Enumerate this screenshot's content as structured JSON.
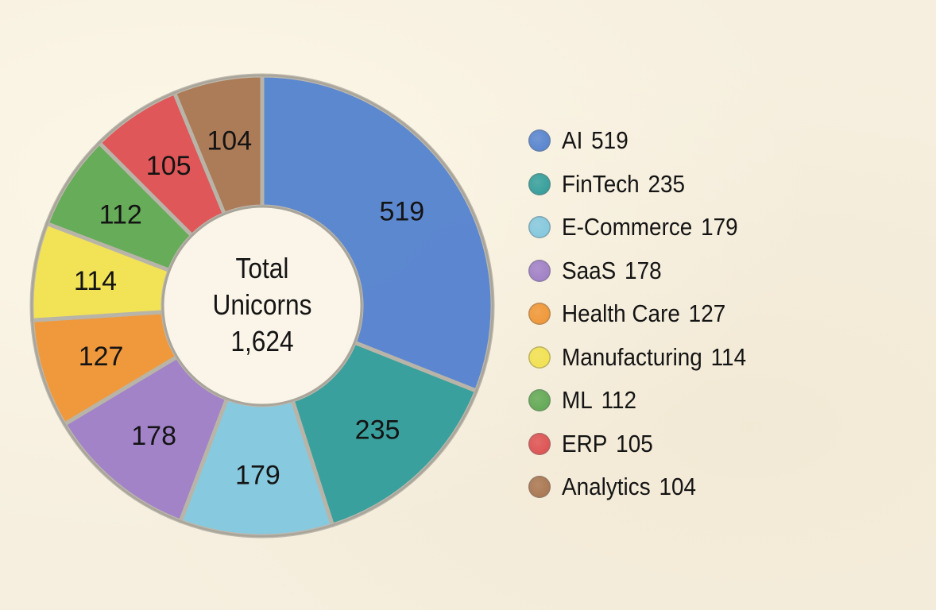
{
  "chart_data": {
    "type": "pie",
    "variant": "donut",
    "title": "",
    "center_label": {
      "line1": "Total",
      "line2": "Unicorns",
      "line3": "1,624"
    },
    "total": 1624,
    "categories": [
      "AI",
      "FinTech",
      "E-Commerce",
      "SaaS",
      "Health Care",
      "Manufacturing",
      "ML",
      "ERP",
      "Analytics"
    ],
    "values": [
      519,
      235,
      179,
      178,
      127,
      114,
      112,
      105,
      104
    ],
    "colors": [
      "#4f7fcf",
      "#2a9a98",
      "#7ec6df",
      "#9b7ac6",
      "#f0922e",
      "#f2e14a",
      "#5aa64e",
      "#dd4a4c",
      "#a6714b"
    ],
    "slice_labels": [
      "519",
      "235",
      "179",
      "178",
      "127",
      "114",
      "112",
      "105",
      "104"
    ],
    "legend_position": "right",
    "start_angle_deg": 0,
    "direction": "clockwise"
  },
  "legend": [
    {
      "label": "AI",
      "value": "519",
      "color": "#4f7fcf"
    },
    {
      "label": "FinTech",
      "value": "235",
      "color": "#2a9a98"
    },
    {
      "label": "E-Commerce",
      "value": "179",
      "color": "#7ec6df"
    },
    {
      "label": "SaaS",
      "value": "178",
      "color": "#9b7ac6"
    },
    {
      "label": "Health Care",
      "value": "127",
      "color": "#f0922e"
    },
    {
      "label": "Manufacturing",
      "value": "114",
      "color": "#f2e14a"
    },
    {
      "label": "ML",
      "value": "112",
      "color": "#5aa64e"
    },
    {
      "label": "ERP",
      "value": "105",
      "color": "#dd4a4c"
    },
    {
      "label": "Analytics",
      "value": "104",
      "color": "#a6714b"
    }
  ]
}
